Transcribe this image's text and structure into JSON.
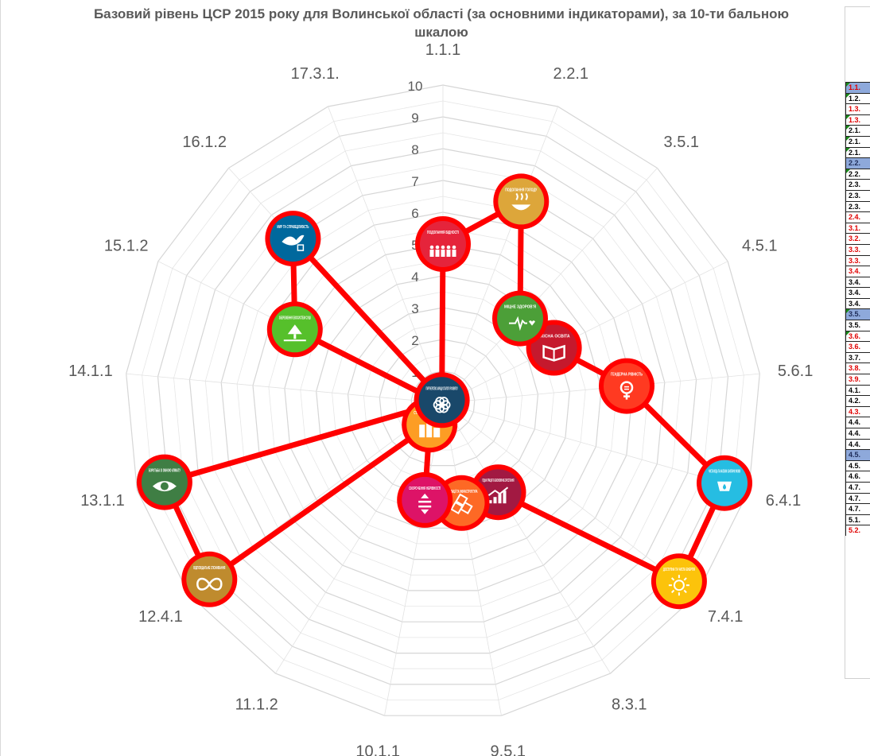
{
  "chart_data": {
    "type": "radar",
    "title": "Базовий рівень ЦСР 2015 року для Волинської області (за основними індикаторами), за 10-ти бальною шкалою",
    "categories": [
      "1.1.1",
      "2.2.1",
      "3.5.1",
      "4.5.1",
      "5.6.1",
      "6.4.1",
      "7.4.1",
      "8.3.1",
      "9.5.1",
      "10.1.1",
      "11.1.2",
      "12.4.1",
      "13.1.1",
      "14.1.1",
      "15.1.2",
      "16.1.2",
      "17.3.1."
    ],
    "radial_ticks": [
      1,
      2,
      3,
      4,
      5,
      6,
      7,
      8,
      9,
      10
    ],
    "range": [
      0,
      10
    ],
    "grid": true,
    "series": [
      {
        "values": [
          5.0,
          6.8,
          3.6,
          3.9,
          5.8,
          9.2,
          9.3,
          3.3,
          3.2,
          3.1,
          0.8,
          9.2,
          9.1,
          0.1,
          5.2,
          7.0,
          0.1
        ]
      }
    ],
    "line_color": "#ff0000",
    "marker_labels": [
      "ПОДОЛАННЯ БІДНОСТІ",
      "ПОДОЛАННЯ ГОЛОДУ",
      "МІЦНЕ ЗДОРОВ'Я",
      "ЯКІСНА ОСВІТА",
      "ГЕНДЕРНА РІВНІСТЬ",
      "ЧИСТА ВОДА ТА НАЛЕЖНІ САНІТАРНІ УМОВИ",
      "ДОСТУПНА ТА ЧИСТА ЕНЕРГІЯ",
      "ГІДНА ПРАЦЯ ТА ЕКОНОМІЧНЕ ЗРОСТАННЯ",
      "ІННОВАЦІЇ ТА ІНФРАСТРУКТУРА",
      "СКОРОЧЕННЯ НЕРІВНОСТІ",
      "СТАЛИЙ РОЗВИТОК МІСТ",
      "ВІДПОВІДАЛЬНЕ СПОЖИВАННЯ",
      "БОРОТЬБА ЗІ ЗМІНОЮ КЛІМАТУ",
      "",
      "ЗБЕРЕЖЕННЯ ЕКОСИСТЕМ СУШІ",
      "МИР ТА СПРАВЕДЛИВІСТЬ",
      "ПАРТНЕРСТВО ЗАРАДИ СТАЛОГО РОЗВИТКУ"
    ],
    "marker_colors": [
      "#e5243b",
      "#dda63a",
      "#4c9f38",
      "#c5192d",
      "#ff3a21",
      "#26bde2",
      "#fcc30b",
      "#a21942",
      "#fd6925",
      "#dd1367",
      "#fd9d24",
      "#bf8b2e",
      "#3f7e44",
      "#0a97d9",
      "#56c02b",
      "#00689d",
      "#19486a"
    ],
    "marker_icons": [
      "people",
      "bowl",
      "heartbeat",
      "book",
      "gender",
      "drop",
      "sun",
      "growth",
      "cubes",
      "equal",
      "city",
      "infinity",
      "eye",
      "wave",
      "tree",
      "dove",
      "flower"
    ]
  },
  "side_table": {
    "rows": [
      {
        "label": "1.1.",
        "red": true,
        "blue": true,
        "flag": true
      },
      {
        "label": "1.2.",
        "red": false,
        "blue": false,
        "flag": true
      },
      {
        "label": "1.3.",
        "red": true,
        "blue": false,
        "flag": false
      },
      {
        "label": "1.3.",
        "red": true,
        "blue": false,
        "flag": true
      },
      {
        "label": "2.1.",
        "red": false,
        "blue": false,
        "flag": true
      },
      {
        "label": "2.1.",
        "red": false,
        "blue": false,
        "flag": true
      },
      {
        "label": "2.1.",
        "red": false,
        "blue": false,
        "flag": true
      },
      {
        "label": "2.2.",
        "red": false,
        "blue": true,
        "flag": false
      },
      {
        "label": "2.2.",
        "red": false,
        "blue": false,
        "flag": true
      },
      {
        "label": "2.3.",
        "red": false,
        "blue": false,
        "flag": false
      },
      {
        "label": "2.3.",
        "red": false,
        "blue": false,
        "flag": false
      },
      {
        "label": "2.3.",
        "red": false,
        "blue": false,
        "flag": false
      },
      {
        "label": "2.4.",
        "red": true,
        "blue": false,
        "flag": false
      },
      {
        "label": "3.1.",
        "red": true,
        "blue": false,
        "flag": false
      },
      {
        "label": "3.2.",
        "red": true,
        "blue": false,
        "flag": false
      },
      {
        "label": "3.3.",
        "red": true,
        "blue": false,
        "flag": false
      },
      {
        "label": "3.3.",
        "red": true,
        "blue": false,
        "flag": false
      },
      {
        "label": "3.4.",
        "red": true,
        "blue": false,
        "flag": false
      },
      {
        "label": "3.4.",
        "red": false,
        "blue": false,
        "flag": false
      },
      {
        "label": "3.4.",
        "red": false,
        "blue": false,
        "flag": false
      },
      {
        "label": "3.4.",
        "red": false,
        "blue": false,
        "flag": false
      },
      {
        "label": "3.5.",
        "red": false,
        "blue": true,
        "flag": true
      },
      {
        "label": "3.5.",
        "red": false,
        "blue": false,
        "flag": false
      },
      {
        "label": "3.6.",
        "red": true,
        "blue": false,
        "flag": true
      },
      {
        "label": "3.6.",
        "red": true,
        "blue": false,
        "flag": false
      },
      {
        "label": "3.7.",
        "red": false,
        "blue": false,
        "flag": false
      },
      {
        "label": "3.8.",
        "red": true,
        "blue": false,
        "flag": false
      },
      {
        "label": "3.9.",
        "red": true,
        "blue": false,
        "flag": false
      },
      {
        "label": "4.1.",
        "red": false,
        "blue": false,
        "flag": false
      },
      {
        "label": "4.2.",
        "red": false,
        "blue": false,
        "flag": false
      },
      {
        "label": "4.3.",
        "red": true,
        "blue": false,
        "flag": false
      },
      {
        "label": "4.4.",
        "red": false,
        "blue": false,
        "flag": false
      },
      {
        "label": "4.4.",
        "red": false,
        "blue": false,
        "flag": false
      },
      {
        "label": "4.4.",
        "red": false,
        "blue": false,
        "flag": false
      },
      {
        "label": "4.5.",
        "red": false,
        "blue": true,
        "flag": false
      },
      {
        "label": "4.5.",
        "red": false,
        "blue": false,
        "flag": false
      },
      {
        "label": "4.6.",
        "red": false,
        "blue": false,
        "flag": false
      },
      {
        "label": "4.7.",
        "red": false,
        "blue": false,
        "flag": false
      },
      {
        "label": "4.7.",
        "red": false,
        "blue": false,
        "flag": false
      },
      {
        "label": "4.7.",
        "red": false,
        "blue": false,
        "flag": false
      },
      {
        "label": "5.1.",
        "red": false,
        "blue": false,
        "flag": false
      },
      {
        "label": "5.2.",
        "red": true,
        "blue": false,
        "flag": false
      }
    ]
  }
}
